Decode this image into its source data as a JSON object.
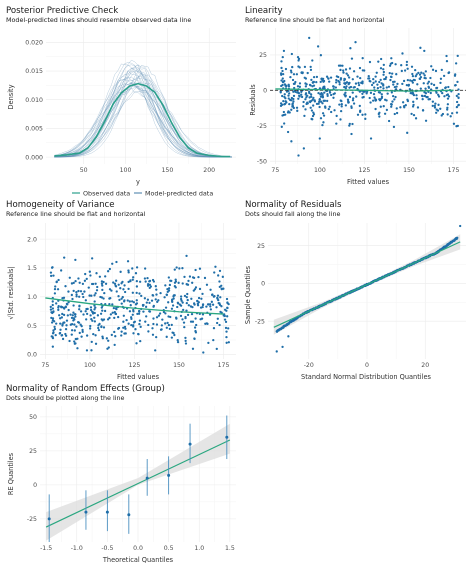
{
  "colors": {
    "observed": "#2c9f8c",
    "predicted": "#5f8fb4",
    "point": "#1f6ea8",
    "ref": "#2aa780",
    "band": "#dcdcdc",
    "grid": "#ebebeb"
  },
  "chart_data": [
    {
      "type": "line",
      "title": "Posterior Predictive Check",
      "subtitle": "Model-predicted lines should resemble observed data line",
      "xlabel": "y",
      "ylabel": "Density",
      "xlim": [
        5,
        232
      ],
      "ylim": [
        -0.0012,
        0.0225
      ],
      "xticks": [
        50,
        100,
        150,
        200
      ],
      "yticks": [
        0.0,
        0.005,
        0.01,
        0.015,
        0.02
      ],
      "ytick_labels": [
        "0.000",
        "0.005",
        "0.010",
        "0.015",
        "0.020"
      ],
      "legend": {
        "position": "bottom",
        "entries": [
          "Observed data",
          "Model-predicted data"
        ]
      },
      "series": [
        {
          "name": "Observed data",
          "x": [
            15,
            30,
            45,
            55,
            65,
            75,
            85,
            95,
            105,
            115,
            125,
            135,
            145,
            155,
            165,
            175,
            185,
            200,
            215,
            225
          ],
          "values": [
            0.0002,
            0.0004,
            0.0007,
            0.0016,
            0.0035,
            0.0062,
            0.0092,
            0.0112,
            0.0124,
            0.0128,
            0.0124,
            0.0113,
            0.009,
            0.006,
            0.0034,
            0.0016,
            0.0007,
            0.0003,
            0.0001,
            0.0001
          ]
        }
      ],
      "predicted": {
        "count": 30,
        "shape": "normal-density draws",
        "mean_range": [
          100,
          125
        ],
        "sd_range": [
          24,
          34
        ]
      }
    },
    {
      "type": "scatter",
      "title": "Linearity",
      "subtitle": "Reference line should be flat and horizontal",
      "xlabel": "Fitted values",
      "ylabel": "Residuals",
      "xlim": [
        72,
        182
      ],
      "ylim": [
        -52,
        44
      ],
      "xticks": [
        75,
        100,
        125,
        150,
        175
      ],
      "yticks": [
        -50,
        -25,
        0,
        25
      ],
      "points": {
        "count": 600,
        "x_range": [
          78,
          178
        ],
        "resid_sd": 11,
        "extremes": [
          [
            88,
            -46
          ],
          [
            91,
            -41
          ],
          [
            94,
            37
          ],
          [
            99,
            31
          ],
          [
            120,
            34
          ],
          [
            84,
            -36
          ],
          [
            149,
            -30
          ]
        ]
      },
      "smooth": {
        "x": [
          75,
          100,
          125,
          150,
          175
        ],
        "values": [
          1,
          0.5,
          0,
          -0.5,
          0
        ]
      },
      "reference": 0
    },
    {
      "type": "scatter",
      "title": "Homogeneity of Variance",
      "subtitle": "Reference line should be flat and horizontal",
      "xlabel": "Fitted values",
      "ylabel": "√|Std. residuals|",
      "xlim": [
        72,
        182
      ],
      "ylim": [
        -0.08,
        2.28
      ],
      "xticks": [
        75,
        100,
        125,
        150,
        175
      ],
      "yticks": [
        0.0,
        0.5,
        1.0,
        1.5,
        2.0
      ],
      "ytick_labels": [
        "0.0",
        "0.5",
        "1.0",
        "1.5",
        "2.0"
      ],
      "points": {
        "count": 600,
        "x_range": [
          78,
          178
        ],
        "y_range": [
          0,
          2.2
        ]
      },
      "smooth": {
        "x": [
          75,
          100,
          125,
          150,
          175
        ],
        "values": [
          0.98,
          0.88,
          0.8,
          0.74,
          0.7
        ]
      }
    },
    {
      "type": "scatter",
      "title": "Normality of Residuals",
      "subtitle": "Dots should fall along the line",
      "xlabel": "Standard Normal Distribution Quantiles",
      "ylabel": "Sample Quantiles",
      "xlim": [
        -34,
        34
      ],
      "ylim": [
        -50,
        40
      ],
      "xticks": [
        -20,
        0,
        20
      ],
      "yticks": [
        -25,
        0,
        25
      ],
      "points": {
        "count": 600,
        "qq_range": [
          -31,
          31
        ],
        "tail_outliers": [
          [
            -31,
            -45
          ],
          [
            -29,
            -42
          ],
          [
            -27,
            -35
          ],
          [
            32,
            38
          ]
        ]
      },
      "reference": {
        "x": [
          -32,
          32
        ],
        "values": [
          -29,
          27.5
        ]
      }
    },
    {
      "type": "scatter",
      "title": "Normality of Random Effects (Group)",
      "subtitle": "Dots should be plotted along the line",
      "xlabel": "Theoretical Quantiles",
      "ylabel": "RE Quantiles",
      "xlim": [
        -1.6,
        1.6
      ],
      "ylim": [
        -42,
        58
      ],
      "xticks": [
        -1.5,
        -1.0,
        -0.5,
        0.0,
        0.5,
        1.0,
        1.5
      ],
      "xtick_labels": [
        "-1.5",
        "-1.0",
        "-0.5",
        "0.0",
        "0.5",
        "1.0",
        "1.5"
      ],
      "yticks": [
        -25,
        0,
        25,
        50
      ],
      "x": [
        -1.45,
        -0.85,
        -0.5,
        -0.15,
        0.15,
        0.5,
        0.85,
        1.45
      ],
      "values": [
        -25,
        -20,
        -20,
        -22,
        5,
        7,
        30,
        35
      ],
      "error_lower": [
        -42,
        -33,
        -34,
        -36,
        -8,
        -7,
        16,
        19
      ],
      "error_upper": [
        -7,
        -4,
        -4,
        -7,
        19,
        21,
        45,
        51
      ],
      "reference": {
        "x": [
          -1.5,
          1.5
        ],
        "values": [
          -31,
          33
        ]
      },
      "band": {
        "x": [
          -1.5,
          0,
          1.5
        ],
        "lower": [
          -41,
          0,
          23
        ],
        "upper": [
          -20,
          5,
          45
        ]
      }
    }
  ]
}
